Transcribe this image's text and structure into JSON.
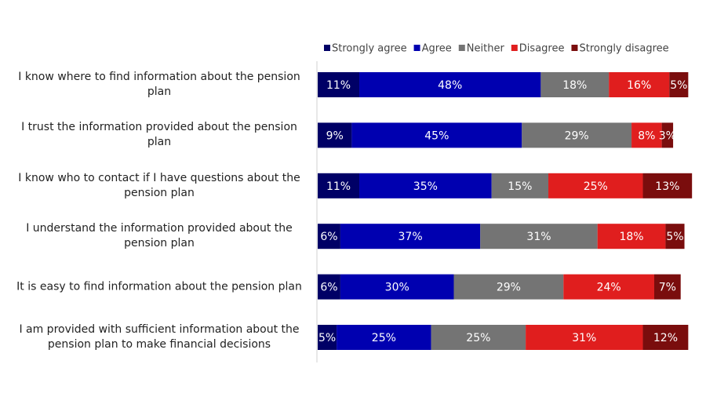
{
  "chart_data": {
    "type": "stacked-bar-horizontal",
    "categories": [
      "I know where to find information about the pension plan",
      "I trust the information provided about the pension plan",
      "I know who to contact if I have questions about the pension plan",
      "I understand the information provided about the pension plan",
      "It is easy to find information about the pension plan",
      "I am provided with sufficient information about the pension plan to make financial decisions"
    ],
    "xlim": [
      0,
      100
    ],
    "legend": "top",
    "series": [
      {
        "name": "Strongly agree",
        "color": "#000066",
        "values": [
          11,
          9,
          11,
          6,
          6,
          5
        ],
        "value_labels": [
          "11%",
          "9%",
          "11%",
          "6%",
          "6%",
          "5%"
        ]
      },
      {
        "name": "Agree",
        "color": "#0000b0",
        "values": [
          48,
          45,
          35,
          37,
          30,
          25
        ],
        "value_labels": [
          "48%",
          "45%",
          "35%",
          "37%",
          "30%",
          "25%"
        ]
      },
      {
        "name": "Neither",
        "color": "#747474",
        "values": [
          18,
          29,
          15,
          31,
          29,
          25
        ],
        "value_labels": [
          "18%",
          "29%",
          "15%",
          "31%",
          "29%",
          "25%"
        ]
      },
      {
        "name": "Disagree",
        "color": "#e01e1e",
        "values": [
          16,
          8,
          25,
          18,
          24,
          31
        ],
        "value_labels": [
          "16%",
          "8%",
          "25%",
          "18%",
          "24%",
          "31%"
        ]
      },
      {
        "name": "Strongly disagree",
        "color": "#7a0d0d",
        "values": [
          5,
          3,
          13,
          5,
          7,
          12
        ],
        "value_labels": [
          "5%",
          "3%",
          "13%",
          "5%",
          "7%",
          "12%"
        ]
      }
    ]
  }
}
